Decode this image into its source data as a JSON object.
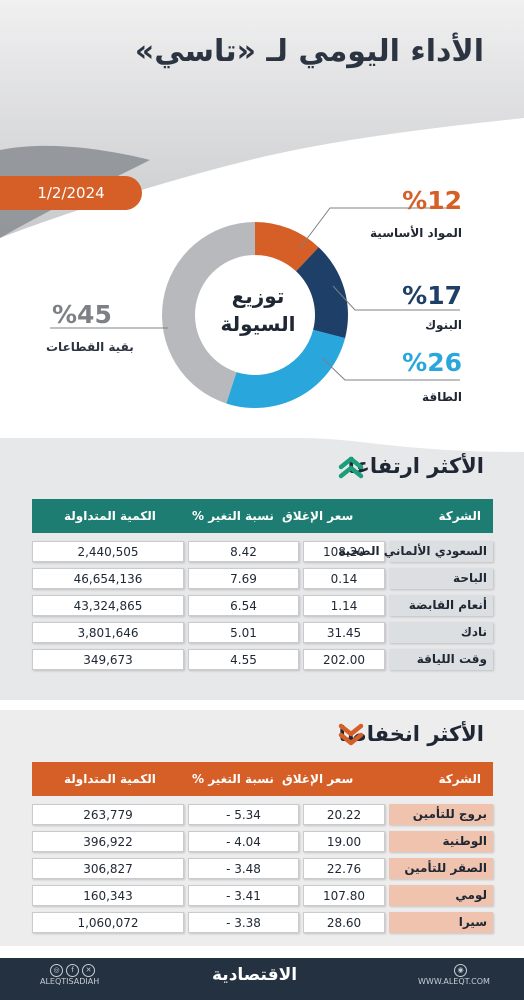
{
  "title": "الأداء اليومي لـ «تاسي»",
  "date": "1/2/2024",
  "donut": {
    "center_line1": "توزيع",
    "center_line2": "السيولة",
    "segments": [
      {
        "label": "المواد الأساسية",
        "percent": "%12",
        "value": 12,
        "color": "#d65f27"
      },
      {
        "label": "البنوك",
        "percent": "%17",
        "value": 17,
        "color": "#1e3f68"
      },
      {
        "label": "الطاقة",
        "percent": "%26",
        "value": 26,
        "color": "#29a6dc"
      },
      {
        "label": "بقية القطاعات",
        "percent": "%45",
        "value": 45,
        "color": "#b7b9bc"
      }
    ]
  },
  "gainers": {
    "title": "الأكثر ارتفاعا",
    "header_color": "#1d7d72",
    "columns": {
      "company": "الشركة",
      "close": "سعر الإغلاق",
      "change": "نسبة التغير %",
      "volume": "الكمية المتداولة"
    },
    "rows": [
      {
        "company": "السعودي الألماني الصحية",
        "close": "108.20",
        "change": "8.42",
        "volume": "2,440,505"
      },
      {
        "company": "الباحة",
        "close": "0.14",
        "change": "7.69",
        "volume": "46,654,136"
      },
      {
        "company": "أنعام القابضة",
        "close": "1.14",
        "change": "6.54",
        "volume": "43,324,865"
      },
      {
        "company": "نادك",
        "close": "31.45",
        "change": "5.01",
        "volume": "3,801,646"
      },
      {
        "company": "وقت اللياقة",
        "close": "202.00",
        "change": "4.55",
        "volume": "349,673"
      }
    ]
  },
  "losers": {
    "title": "الأكثر انخفاضا",
    "header_color": "#d65f27",
    "columns": {
      "company": "الشركة",
      "close": "سعر الإغلاق",
      "change": "نسبة التغير %",
      "volume": "الكمية المتداولة"
    },
    "rows": [
      {
        "company": "بروج للتأمين",
        "close": "20.22",
        "change": "- 5.34",
        "volume": "263,779"
      },
      {
        "company": "الوطنية",
        "close": "19.00",
        "change": "- 4.04",
        "volume": "396,922"
      },
      {
        "company": "الصقر للتأمين",
        "close": "22.76",
        "change": "- 3.48",
        "volume": "306,827"
      },
      {
        "company": "لومي",
        "close": "107.80",
        "change": "- 3.41",
        "volume": "160,343"
      },
      {
        "company": "سيرا",
        "close": "28.60",
        "change": "- 3.38",
        "volume": "1,060,072"
      }
    ]
  },
  "footer": {
    "handle": "ALEQTISADIAH",
    "brand": "الاقتصادية",
    "site": "WWW.ALEQT.COM",
    "social_icons": [
      "instagram-icon",
      "facebook-icon",
      "x-icon"
    ]
  }
}
